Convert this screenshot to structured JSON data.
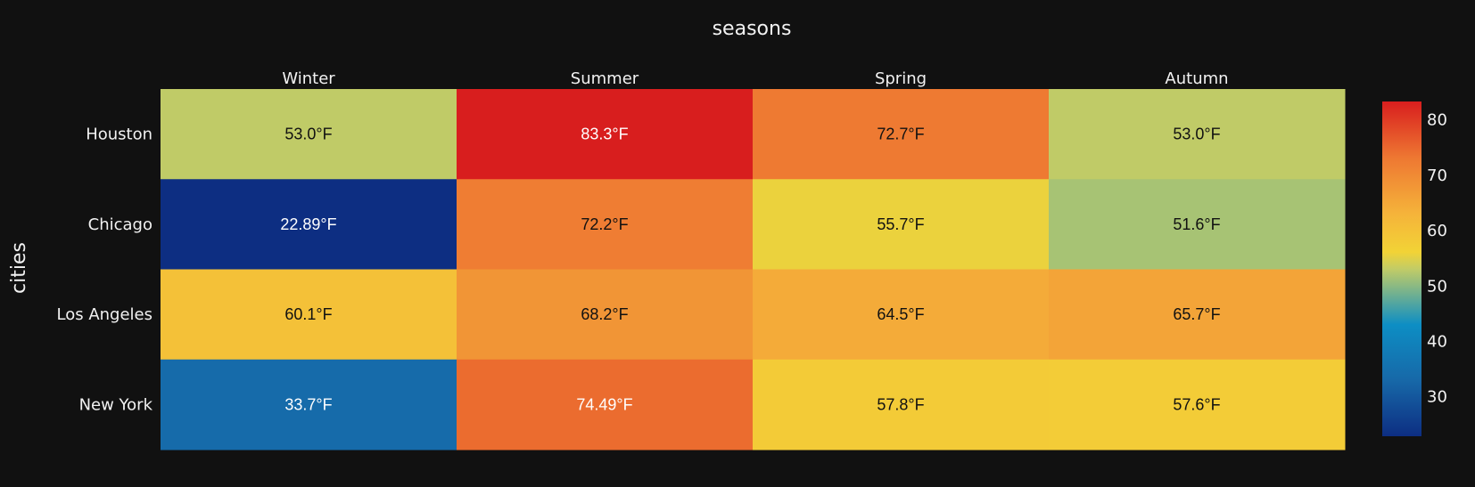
{
  "chart_data": {
    "type": "heatmap",
    "title": "",
    "xlabel": "seasons",
    "ylabel": "cities",
    "x": [
      "Winter",
      "Summer",
      "Spring",
      "Autumn"
    ],
    "y": [
      "Houston",
      "Chicago",
      "Los Angeles",
      "New York"
    ],
    "z": [
      [
        53.0,
        83.3,
        72.7,
        53.0
      ],
      [
        22.89,
        72.2,
        55.7,
        51.6
      ],
      [
        60.1,
        68.2,
        64.5,
        65.7
      ],
      [
        33.7,
        74.49,
        57.8,
        57.6
      ]
    ],
    "text": [
      [
        "53.0°F",
        "83.3°F",
        "72.7°F",
        "53.0°F"
      ],
      [
        "22.89°F",
        "72.2°F",
        "55.7°F",
        "51.6°F"
      ],
      [
        "60.1°F",
        "68.2°F",
        "64.5°F",
        "65.7°F"
      ],
      [
        "33.7°F",
        "74.49°F",
        "57.8°F",
        "57.6°F"
      ]
    ],
    "x_axis_side": "top",
    "colorscale": [
      [
        0.0,
        "#0d2e82"
      ],
      [
        0.166,
        "#1768a8"
      ],
      [
        0.333,
        "#0d8ec4"
      ],
      [
        0.5,
        "#c2cc66"
      ],
      [
        0.55,
        "#f2d336"
      ],
      [
        0.666,
        "#f5b33a"
      ],
      [
        0.833,
        "#ee7732"
      ],
      [
        1.0,
        "#d81e1e"
      ]
    ],
    "zmin": 22.89,
    "zmax": 83.3,
    "colorbar_ticks": [
      30,
      40,
      50,
      60,
      70,
      80
    ],
    "colorbar_position": "right",
    "grid": false
  },
  "theme": {
    "background": "#111111",
    "text_color": "#f2f2f2",
    "dark_text": "#111111",
    "light_text": "#ffffff"
  }
}
